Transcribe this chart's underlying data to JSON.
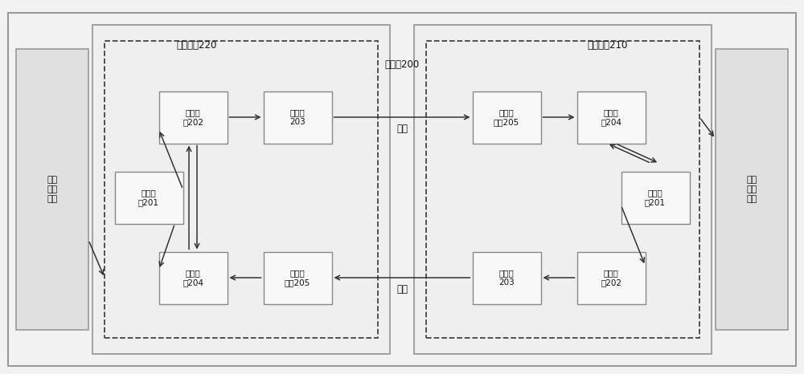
{
  "bg_color": "#f2f2f2",
  "outer_box_fill": "#f2f2f2",
  "outer_box_edge": "#999999",
  "card_box_fill": "#efefef",
  "card_box_edge": "#999999",
  "dashed_box_edge": "#444444",
  "component_fill": "#f8f8f8",
  "component_edge": "#888888",
  "port_fill": "#e0e0e0",
  "port_edge": "#999999",
  "arrow_color": "#333333",
  "outer_net_label": "外网\n通信\n端口",
  "inner_net_label": "内网\n通信\n端口",
  "left_card_label": "外网网卡220",
  "right_card_label": "内网网卡210",
  "optical_switch_label": "光开关200",
  "fiber_top_label": "光纤",
  "fiber_bottom_label": "光纤",
  "left_ctrl_label": "控制芯\n片202",
  "left_laser_label": "激光器\n203",
  "left_micro_label": "微处理\n器201",
  "left_recv_label": "接收芯\n片204",
  "left_photo_label": "光电探\n测器205",
  "right_photo_label": "光电探\n测器205",
  "right_recv_label": "接收芯\n片204",
  "right_micro_label": "微处理\n器201",
  "right_laser_label": "激光器\n203",
  "right_ctrl_label": "控制芯\n片202"
}
